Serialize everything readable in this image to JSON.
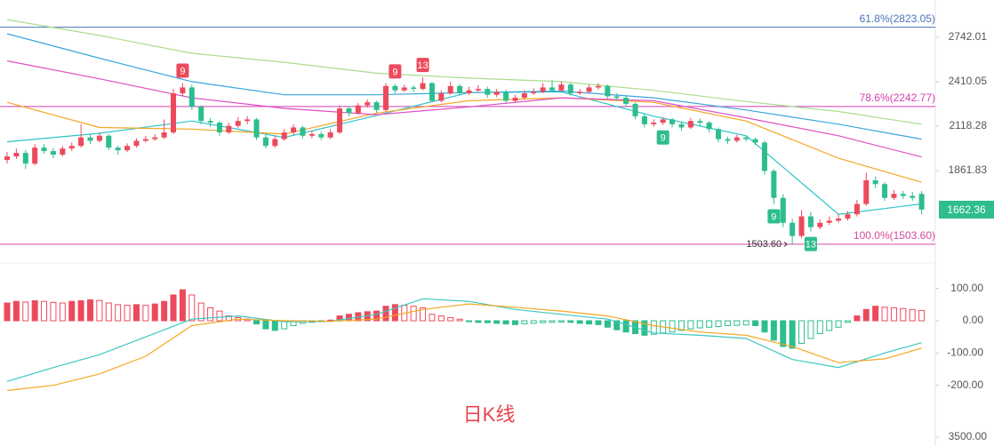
{
  "chart_data": {
    "type": "candlestick",
    "watermark": "日K线",
    "log_scale": true,
    "ylim": [
      1446,
      3055
    ],
    "yticks": [
      2742.01,
      2410.05,
      2118.28,
      1861.83
    ],
    "up_color": "#ec4a5c",
    "down_color": "#2dbd8e",
    "open": [
      1920,
      1940,
      1960,
      1900,
      1990,
      1970,
      1950,
      1985,
      2000,
      2050,
      2030,
      2060,
      1990,
      1975,
      2000,
      2030,
      2040,
      2050,
      2080,
      2330,
      2370,
      2240,
      2150,
      2140,
      2080,
      2120,
      2150,
      2160,
      2050,
      2000,
      2040,
      2080,
      2110,
      2060,
      2070,
      2050,
      2080,
      2230,
      2200,
      2250,
      2270,
      2220,
      2380,
      2350,
      2370,
      2360,
      2400,
      2280,
      2330,
      2380,
      2330,
      2350,
      2360,
      2320,
      2340,
      2280,
      2300,
      2330,
      2340,
      2370,
      2350,
      2390,
      2330,
      2340,
      2370,
      2380,
      2310,
      2300,
      2260,
      2180,
      2130,
      2140,
      2160,
      2130,
      2110,
      2150,
      2140,
      2100,
      2040,
      2030,
      2050,
      2040,
      2020,
      1860,
      1720,
      1600,
      1540,
      1630,
      1580,
      1600,
      1610,
      1620,
      1640,
      1690,
      1810,
      1790,
      1720,
      1740,
      1730,
      1740
    ],
    "high": [
      1965,
      1985,
      1975,
      2010,
      2010,
      1990,
      2000,
      2020,
      2130,
      2070,
      2080,
      2070,
      2000,
      2015,
      2045,
      2060,
      2070,
      2160,
      2360,
      2400,
      2390,
      2250,
      2170,
      2150,
      2140,
      2175,
      2180,
      2170,
      2065,
      2060,
      2100,
      2130,
      2120,
      2090,
      2085,
      2100,
      2250,
      2245,
      2265,
      2290,
      2280,
      2400,
      2395,
      2390,
      2385,
      2440,
      2410,
      2350,
      2410,
      2395,
      2375,
      2385,
      2375,
      2360,
      2355,
      2320,
      2350,
      2365,
      2400,
      2420,
      2410,
      2400,
      2360,
      2390,
      2400,
      2390,
      2330,
      2315,
      2270,
      2195,
      2160,
      2175,
      2170,
      2145,
      2170,
      2165,
      2150,
      2110,
      2055,
      2065,
      2060,
      2050,
      2030,
      1870,
      1740,
      1620,
      1660,
      1650,
      1615,
      1630,
      1640,
      1655,
      1710,
      1850,
      1830,
      1800,
      1760,
      1755,
      1750,
      1755
    ],
    "low": [
      1900,
      1925,
      1870,
      1890,
      1955,
      1930,
      1940,
      1970,
      1990,
      2010,
      2020,
      1975,
      1950,
      1965,
      1990,
      2020,
      2030,
      2040,
      2070,
      2310,
      2220,
      2130,
      2115,
      2060,
      2070,
      2105,
      2130,
      2035,
      1985,
      1990,
      2030,
      2065,
      2045,
      2045,
      2035,
      2040,
      2070,
      2180,
      2190,
      2235,
      2200,
      2210,
      2330,
      2340,
      2340,
      2350,
      2270,
      2270,
      2320,
      2315,
      2320,
      2340,
      2300,
      2305,
      2260,
      2270,
      2290,
      2320,
      2330,
      2335,
      2340,
      2315,
      2320,
      2330,
      2355,
      2295,
      2280,
      2240,
      2160,
      2110,
      2115,
      2125,
      2110,
      2090,
      2100,
      2120,
      2080,
      2020,
      2010,
      2020,
      2025,
      2005,
      1840,
      1690,
      1580,
      1503.6,
      1530,
      1560,
      1570,
      1590,
      1600,
      1610,
      1630,
      1680,
      1770,
      1705,
      1710,
      1715,
      1705,
      1640
    ],
    "close": [
      1940,
      1960,
      1900,
      1990,
      1970,
      1950,
      1985,
      2000,
      2050,
      2030,
      2060,
      1990,
      1975,
      2000,
      2030,
      2040,
      2050,
      2080,
      2330,
      2370,
      2240,
      2150,
      2140,
      2080,
      2120,
      2150,
      2160,
      2050,
      2000,
      2040,
      2080,
      2110,
      2060,
      2070,
      2050,
      2080,
      2230,
      2200,
      2250,
      2270,
      2220,
      2380,
      2350,
      2370,
      2360,
      2400,
      2280,
      2330,
      2380,
      2330,
      2350,
      2360,
      2320,
      2340,
      2280,
      2300,
      2330,
      2340,
      2370,
      2350,
      2390,
      2330,
      2340,
      2370,
      2380,
      2310,
      2300,
      2260,
      2180,
      2130,
      2140,
      2160,
      2130,
      2110,
      2150,
      2140,
      2100,
      2040,
      2030,
      2050,
      2040,
      2020,
      1860,
      1720,
      1600,
      1540,
      1630,
      1580,
      1600,
      1610,
      1620,
      1640,
      1690,
      1810,
      1790,
      1720,
      1740,
      1730,
      1720,
      1662.36
    ],
    "ma": {
      "x": [
        0,
        10,
        20,
        30,
        40,
        50,
        60,
        70,
        80,
        90,
        99
      ],
      "series": [
        {
          "color": "#2ec4c8",
          "values": [
            2024,
            2075,
            2150,
            2050,
            2185,
            2335,
            2340,
            2180,
            2060,
            1640,
            1690
          ]
        },
        {
          "color": "#f5a623",
          "values": [
            2270,
            2110,
            2100,
            2070,
            2200,
            2280,
            2300,
            2270,
            2150,
            1930,
            1800
          ]
        },
        {
          "color": "#3aa6dd",
          "values": [
            2770,
            2580,
            2410,
            2320,
            2320,
            2335,
            2345,
            2300,
            2220,
            2130,
            2040
          ]
        },
        {
          "color": "#e04fc4",
          "values": [
            2560,
            2430,
            2300,
            2230,
            2190,
            2240,
            2300,
            2280,
            2170,
            2060,
            1937
          ]
        },
        {
          "color": "#a9dc8c",
          "values": [
            2886,
            2756,
            2617,
            2550,
            2470,
            2435,
            2410,
            2350,
            2275,
            2210,
            2130
          ]
        }
      ]
    },
    "fib_levels": [
      {
        "value": 2823.05,
        "label": "61.8%(2823.05)",
        "color": "#4a72b8"
      },
      {
        "value": 2242.77,
        "label": "78.6%(2242.77)",
        "color": "#d43fb0"
      },
      {
        "value": 1503.6,
        "label": "100.0%(1503.60)",
        "color": "#d64aa0"
      }
    ],
    "low_marker": {
      "index": 85,
      "value": 1503.6,
      "label": "1503.60"
    },
    "td_marks": [
      {
        "index": 19,
        "label": "9",
        "side": "up"
      },
      {
        "index": 42,
        "label": "9",
        "side": "up"
      },
      {
        "index": 45,
        "label": "13",
        "side": "up"
      },
      {
        "index": 71,
        "label": "9",
        "side": "down"
      },
      {
        "index": 83,
        "label": "9",
        "side": "down"
      },
      {
        "index": 87,
        "label": "13",
        "side": "down"
      }
    ],
    "macd": {
      "ylim": [
        -245,
        168
      ],
      "yticks": [
        {
          "value": 100,
          "label": "100.00"
        },
        {
          "value": 0,
          "label": "0.00"
        },
        {
          "value": -100,
          "label": "-100.00"
        },
        {
          "value": -200,
          "label": "-200.00"
        }
      ],
      "histogram": [
        55,
        60,
        58,
        62,
        60,
        57,
        55,
        60,
        62,
        65,
        63,
        55,
        50,
        48,
        50,
        48,
        52,
        60,
        80,
        96,
        80,
        55,
        40,
        30,
        15,
        10,
        5,
        -10,
        -25,
        -30,
        -25,
        -15,
        -8,
        -5,
        -3,
        2,
        15,
        20,
        25,
        28,
        30,
        45,
        50,
        48,
        45,
        40,
        20,
        15,
        10,
        5,
        -3,
        -5,
        -6,
        -8,
        -10,
        -12,
        -10,
        -8,
        -6,
        -5,
        -4,
        -5,
        -8,
        -10,
        -12,
        -20,
        -28,
        -35,
        -40,
        -45,
        -42,
        -38,
        -35,
        -30,
        -25,
        -22,
        -20,
        -18,
        -15,
        -14,
        -13,
        -15,
        -35,
        -60,
        -80,
        -85,
        -70,
        -55,
        -40,
        -30,
        -20,
        -5,
        15,
        35,
        45,
        42,
        40,
        38,
        35,
        32
      ],
      "x": [
        0,
        5,
        10,
        15,
        20,
        25,
        30,
        35,
        40,
        45,
        50,
        55,
        60,
        65,
        70,
        75,
        80,
        85,
        90,
        95,
        99
      ],
      "dif": {
        "color": "#3cc8c0",
        "values": [
          -188,
          -145,
          -105,
          -50,
          5,
          15,
          -3,
          -2,
          20,
          68,
          60,
          35,
          20,
          5,
          -38,
          -45,
          -55,
          -120,
          -145,
          -100,
          -68
        ]
      },
      "dea": {
        "color": "#f5a623",
        "values": [
          -216,
          -200,
          -165,
          -110,
          -15,
          5,
          0,
          -2,
          5,
          35,
          52,
          42,
          30,
          15,
          -15,
          -35,
          -45,
          -80,
          -130,
          -118,
          -85
        ]
      }
    },
    "volume_yticks": [
      {
        "value": 3500,
        "label": "3500.00"
      }
    ]
  }
}
